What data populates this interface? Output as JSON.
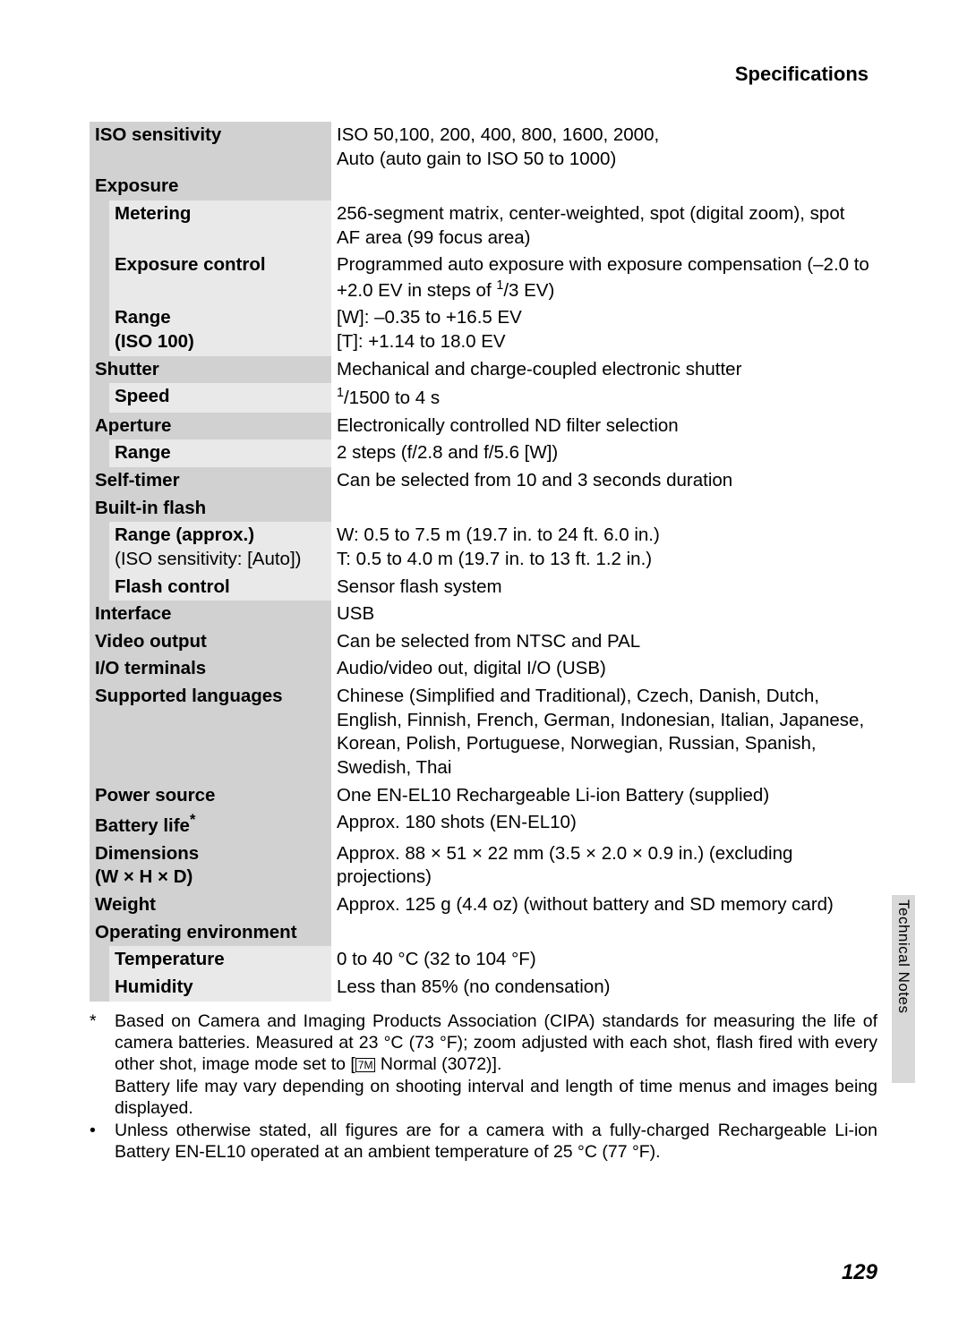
{
  "header": "Specifications",
  "sideTab": "Technical Notes",
  "pageNumber": "129",
  "rows": [
    {
      "type": "main",
      "label": "ISO sensitivity",
      "value": "ISO 50,100, 200, 400, 800, 1600, 2000,<br>Auto (auto gain to ISO 50 to 1000)"
    },
    {
      "type": "main",
      "label": "Exposure",
      "value": ""
    },
    {
      "type": "sub",
      "label": "Metering",
      "value": "256-segment matrix, center-weighted, spot (digital zoom), spot AF area (99 focus area)"
    },
    {
      "type": "sub",
      "label": "Exposure control",
      "value": "Programmed auto exposure with exposure compensation (–2.0 to +2.0 EV in steps of <sup>1</sup>/3 EV)"
    },
    {
      "type": "sub",
      "label": "Range<br>(ISO 100)",
      "value": "[W]: –0.35 to +16.5 EV<br>[T]: +1.14 to 18.0 EV"
    },
    {
      "type": "main",
      "label": "Shutter",
      "value": "Mechanical and charge-coupled electronic shutter"
    },
    {
      "type": "sub",
      "label": "Speed",
      "value": "<sup>1</sup>/1500 to 4 s"
    },
    {
      "type": "main",
      "label": "Aperture",
      "value": "Electronically controlled ND filter selection"
    },
    {
      "type": "sub",
      "label": "Range",
      "value": "2 steps (f/2.8 and f/5.6 [W])"
    },
    {
      "type": "main",
      "label": "Self-timer",
      "value": "Can be selected from 10 and 3 seconds duration"
    },
    {
      "type": "main",
      "label": "Built-in flash",
      "value": ""
    },
    {
      "type": "sub",
      "label": "Range (approx.)<br><span style='font-weight:normal'>(ISO sensitivity: [Auto])</span>",
      "value": "W: 0.5 to 7.5 m (19.7 in. to 24 ft. 6.0 in.)<br>T: 0.5 to 4.0 m (19.7 in. to 13 ft. 1.2 in.)"
    },
    {
      "type": "sub",
      "label": "Flash control",
      "value": "Sensor flash system"
    },
    {
      "type": "main",
      "label": "Interface",
      "value": "USB"
    },
    {
      "type": "main",
      "label": "Video output",
      "value": "Can be selected from NTSC and PAL"
    },
    {
      "type": "main",
      "label": "I/O terminals",
      "value": "Audio/video out, digital I/O (USB)"
    },
    {
      "type": "main",
      "label": "Supported languages",
      "value": "Chinese (Simplified and Traditional), Czech, Danish, Dutch, English, Finnish, French, German, Indonesian, Italian, Japanese, Korean, Polish, Portuguese, Norwegian, Russian, Spanish, Swedish, Thai"
    },
    {
      "type": "main",
      "label": "Power source",
      "value": "One EN-EL10 Rechargeable Li-ion Battery (supplied)"
    },
    {
      "type": "main",
      "label": "Battery life<span class='fn-marker'>*</span>",
      "value": "Approx. 180 shots (EN-EL10)"
    },
    {
      "type": "main",
      "label": "Dimensions<br>(W × H × D)",
      "value": "Approx. 88 × 51 × 22 mm (3.5 × 2.0 × 0.9 in.) (excluding projections)"
    },
    {
      "type": "main",
      "label": "Weight",
      "value": "Approx. 125 g (4.4 oz) (without battery and SD memory card)"
    },
    {
      "type": "main",
      "label": "Operating environment",
      "value": ""
    },
    {
      "type": "sub",
      "label": "Temperature",
      "value": "0 to 40 °C (32 to 104 °F)"
    },
    {
      "type": "sub",
      "label": "Humidity",
      "value": "Less than 85% (no condensation)"
    }
  ],
  "footnotes": [
    {
      "marker": "*",
      "text": "Based on Camera and Imaging Products Association (CIPA) standards for measuring the life of camera batteries. Measured at 23 °C (73 °F); zoom adjusted with each shot, flash fired with every other shot, image mode set to [<span class='mpicon'>7M</span> Normal (3072)].<br>Battery life may vary depending on shooting interval and length of time menus and images being displayed."
    },
    {
      "marker": "•",
      "text": "Unless otherwise stated, all figures are for a camera with a fully-charged Rechargeable Li-ion Battery EN-EL10 operated at an ambient temperature of 25 °C (77 °F)."
    }
  ]
}
